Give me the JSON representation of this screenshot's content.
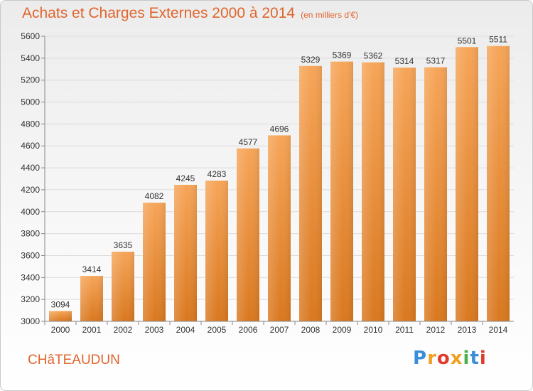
{
  "header": {
    "title": "Achats et Charges Externes 2000 à 2014",
    "subtitle": "(en milliers d'€)"
  },
  "footer": {
    "commune": "CHâTEAUDUN",
    "logo_text": "Proxiti"
  },
  "colors": {
    "bar_light": "#f6a558",
    "bar_dark": "#d9781f",
    "title": "#e0652e",
    "grid": "#dcdcdc"
  },
  "chart_data": {
    "type": "bar",
    "title": "Achats et Charges Externes 2000 à 2014",
    "subtitle": "(en milliers d'€)",
    "xlabel": "",
    "ylabel": "",
    "categories": [
      "2000",
      "2001",
      "2002",
      "2003",
      "2004",
      "2005",
      "2006",
      "2007",
      "2008",
      "2009",
      "2010",
      "2011",
      "2012",
      "2013",
      "2014"
    ],
    "values": [
      3094,
      3414,
      3635,
      4082,
      4245,
      4283,
      4577,
      4696,
      5329,
      5369,
      5362,
      5314,
      5317,
      5501,
      5511
    ],
    "ylim": [
      3000,
      5600
    ],
    "yticks": [
      3000,
      3200,
      3400,
      3600,
      3800,
      4000,
      4200,
      4400,
      4600,
      4800,
      5000,
      5200,
      5400,
      5600
    ],
    "grid": true,
    "legend": "none"
  }
}
